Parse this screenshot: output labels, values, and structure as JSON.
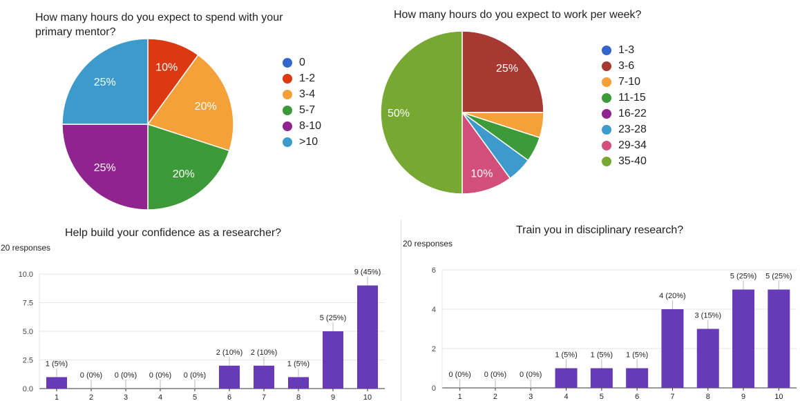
{
  "chart_data": [
    {
      "id": "mentor-hours",
      "type": "pie",
      "title": "How many hours do you expect to spend with your primary mentor?",
      "title_lines": [
        "How many hours do you expect to spend with your",
        "primary mentor?"
      ],
      "legend": [
        "0",
        "1-2",
        "3-4",
        "5-7",
        "8-10",
        ">10"
      ],
      "colors": [
        "#3366cc",
        "#dc3912",
        "#f4a13a",
        "#3c9a38",
        "#90248e",
        "#3d9bcc"
      ],
      "values": [
        0,
        10,
        20,
        20,
        25,
        25
      ],
      "labels": [
        "",
        "10%",
        "20%",
        "20%",
        "25%",
        "25%"
      ]
    },
    {
      "id": "work-hours",
      "type": "pie",
      "title": "How many hours do you expect to work per week?",
      "title_lines": [
        "How many hours do you expect to work per week?"
      ],
      "legend": [
        "1-3",
        "3-6",
        "7-10",
        "11-15",
        "16-22",
        "23-28",
        "29-34",
        "35-40"
      ],
      "colors": [
        "#3366cc",
        "#a63a33",
        "#f4a13a",
        "#3c9a38",
        "#90248e",
        "#3d9bcc",
        "#d24f7b",
        "#77a832"
      ],
      "values": [
        0,
        25,
        5,
        5,
        0,
        5,
        10,
        50
      ],
      "labels": [
        "",
        "25%",
        "",
        "",
        "",
        "",
        "10%",
        "50%"
      ]
    },
    {
      "id": "confidence",
      "type": "bar",
      "title": "Help build your confidence as a researcher?",
      "responses": "20 responses",
      "categories": [
        "1",
        "2",
        "3",
        "4",
        "5",
        "6",
        "7",
        "8",
        "9",
        "10"
      ],
      "values": [
        1,
        0,
        0,
        0,
        0,
        2,
        2,
        1,
        5,
        9
      ],
      "data_labels": [
        "1 (5%)",
        "0 (0%)",
        "0 (0%)",
        "0 (0%)",
        "0 (0%)",
        "2 (10%)",
        "2 (10%)",
        "1 (5%)",
        "5 (25%)",
        "9 (45%)"
      ],
      "yticks": [
        "0.0",
        "2.5",
        "5.0",
        "7.5",
        "10.0"
      ],
      "ylim": [
        0,
        10
      ],
      "bar_color": "#673ab7"
    },
    {
      "id": "disciplinary",
      "type": "bar",
      "title": "Train you in disciplinary research?",
      "responses": "20 responses",
      "categories": [
        "1",
        "2",
        "3",
        "4",
        "5",
        "6",
        "7",
        "8",
        "9",
        "10"
      ],
      "values": [
        0,
        0,
        0,
        1,
        1,
        1,
        4,
        3,
        5,
        5
      ],
      "data_labels": [
        "0 (0%)",
        "0 (0%)",
        "0 (0%)",
        "1 (5%)",
        "1 (5%)",
        "1 (5%)",
        "4 (20%)",
        "3 (15%)",
        "5 (25%)",
        "5 (25%)"
      ],
      "yticks": [
        "0",
        "2",
        "4",
        "6"
      ],
      "ylim": [
        0,
        6
      ],
      "bar_color": "#673ab7"
    }
  ]
}
